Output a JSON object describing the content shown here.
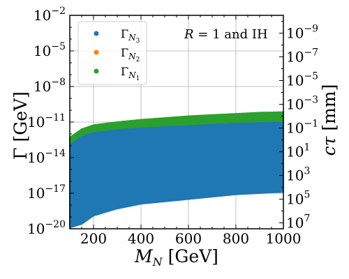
{
  "chart_data": {
    "type": "scatter",
    "xlabel": {
      "main": "M",
      "sub": "N",
      "unit": " [GeV]"
    },
    "ylabel": {
      "main": "Γ",
      "unit": " [GeV]"
    },
    "y2label": {
      "main": "cτ",
      "unit": " [mm]"
    },
    "annotation": {
      "prefix": "R",
      "mid": " = 1 ",
      "suffix": "and IH"
    },
    "xlim": [
      100,
      1000
    ],
    "ylim_log10": [
      -20,
      -2
    ],
    "x_ticks": [
      {
        "value": 200,
        "label": "200"
      },
      {
        "value": 400,
        "label": "400"
      },
      {
        "value": 600,
        "label": "600"
      },
      {
        "value": 800,
        "label": "800"
      },
      {
        "value": 1000,
        "label": "1000"
      }
    ],
    "y_ticks": [
      {
        "exp": -20,
        "base": "10",
        "sup": "−20"
      },
      {
        "exp": -17,
        "base": "10",
        "sup": "−17"
      },
      {
        "exp": -14,
        "base": "10",
        "sup": "−14"
      },
      {
        "exp": -11,
        "base": "10",
        "sup": "−11"
      },
      {
        "exp": -8,
        "base": "10",
        "sup": "−8"
      },
      {
        "exp": -5,
        "base": "10",
        "sup": "−5"
      },
      {
        "exp": -2,
        "base": "10",
        "sup": "−2"
      }
    ],
    "y2_ticks": [
      {
        "ctau_exp": -9,
        "base": "10",
        "sup": "−9"
      },
      {
        "ctau_exp": -7,
        "base": "10",
        "sup": "−7"
      },
      {
        "ctau_exp": -5,
        "base": "10",
        "sup": "−5"
      },
      {
        "ctau_exp": -3,
        "base": "10",
        "sup": "−3"
      },
      {
        "ctau_exp": -1,
        "base": "10",
        "sup": "−1"
      },
      {
        "ctau_exp": 1,
        "base": "10",
        "sup": "1"
      },
      {
        "ctau_exp": 3,
        "base": "10",
        "sup": "3"
      },
      {
        "ctau_exp": 5,
        "base": "10",
        "sup": "5"
      },
      {
        "ctau_exp": 7,
        "base": "10",
        "sup": "7"
      }
    ],
    "grid": true,
    "legend_position": "top-left",
    "series": [
      {
        "name": {
          "main": "Γ",
          "sub": "N",
          "subsub": "3"
        },
        "color": "#1f77b4",
        "x": [
          100,
          150,
          200,
          300,
          400,
          500,
          600,
          700,
          800,
          900,
          1000
        ],
        "y_low_log10": [
          -19.9,
          -19.6,
          -18.9,
          -18.3,
          -17.9,
          -17.7,
          -17.5,
          -17.3,
          -17.1,
          -17.0,
          -16.9
        ],
        "y_high_log10": [
          -12.8,
          -12.1,
          -11.8,
          -11.55,
          -11.4,
          -11.3,
          -11.2,
          -11.1,
          -11.0,
          -10.95,
          -10.9
        ]
      },
      {
        "name": {
          "main": "Γ",
          "sub": "N",
          "subsub": "2"
        },
        "color": "#ff7f0e",
        "x": [],
        "y_low_log10": [],
        "y_high_log10": []
      },
      {
        "name": {
          "main": "Γ",
          "sub": "N",
          "subsub": "1"
        },
        "color": "#2ca02c",
        "x": [
          100,
          150,
          200,
          300,
          400,
          500,
          600,
          700,
          800,
          900,
          1000
        ],
        "y_low_log10": [
          -12.8,
          -12.1,
          -11.8,
          -11.55,
          -11.4,
          -11.3,
          -11.2,
          -11.1,
          -11.0,
          -10.95,
          -10.9
        ],
        "y_high_log10": [
          -12.3,
          -11.6,
          -11.25,
          -11.0,
          -10.8,
          -10.65,
          -10.5,
          -10.4,
          -10.3,
          -10.2,
          -10.15
        ]
      }
    ]
  }
}
